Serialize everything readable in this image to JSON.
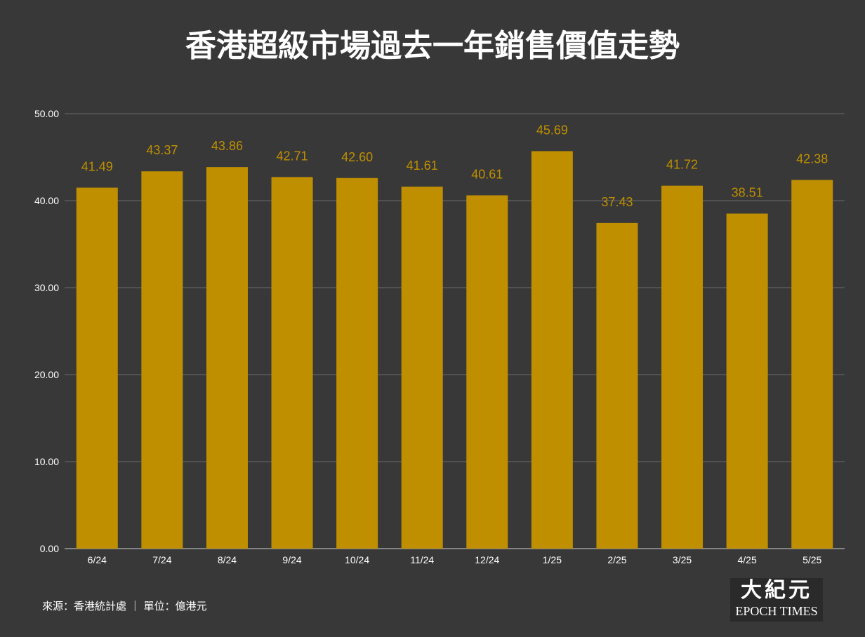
{
  "title": "香港超級市場過去一年銷售價值走勢",
  "source_note": "來源：香港統計處 ｜ 單位：億港元",
  "logo": {
    "cjk": "大紀元",
    "en": "EPOCH TIMES"
  },
  "colors": {
    "background": "#383838",
    "bar": "#bf8f00",
    "label": "#bf8f00",
    "grid": "#6a6a6a",
    "axis_text": "#ffffff"
  },
  "chart_data": {
    "type": "bar",
    "title": "香港超級市場過去一年銷售價值走勢",
    "xlabel": "",
    "ylabel": "",
    "ylim": [
      0,
      50
    ],
    "yticks": [
      "0.00",
      "10.00",
      "20.00",
      "30.00",
      "40.00",
      "50.00"
    ],
    "grid": true,
    "legend": "none",
    "categories": [
      "6/24",
      "7/24",
      "8/24",
      "9/24",
      "10/24",
      "11/24",
      "12/24",
      "1/25",
      "2/25",
      "3/25",
      "4/25",
      "5/25"
    ],
    "values": [
      41.49,
      43.37,
      43.86,
      42.71,
      42.6,
      41.61,
      40.61,
      45.69,
      37.43,
      41.72,
      38.51,
      42.38
    ],
    "value_labels": [
      "41.49",
      "43.37",
      "43.86",
      "42.71",
      "42.60",
      "41.61",
      "40.61",
      "45.69",
      "37.43",
      "41.72",
      "38.51",
      "42.38"
    ]
  }
}
